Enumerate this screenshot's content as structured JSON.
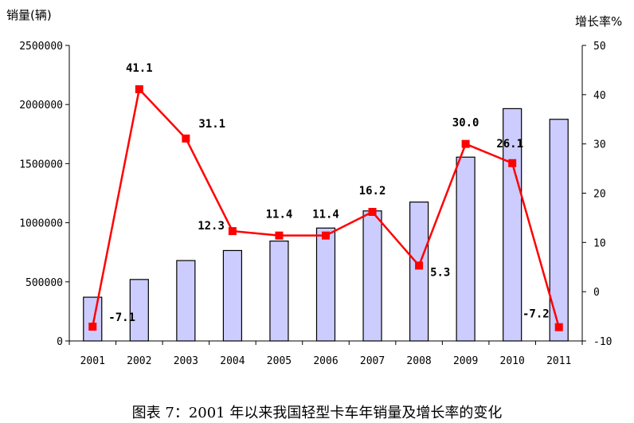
{
  "chart_data": {
    "type": "bar+line",
    "categories": [
      "2001",
      "2002",
      "2003",
      "2004",
      "2005",
      "2006",
      "2007",
      "2008",
      "2009",
      "2010",
      "2011"
    ],
    "series": [
      {
        "axis": "left",
        "type": "bar",
        "values": [
          370000,
          520000,
          680000,
          765000,
          845000,
          955000,
          1100000,
          1175000,
          1555000,
          1965000,
          1875000
        ]
      },
      {
        "axis": "right",
        "type": "line",
        "values": [
          -7.1,
          41.1,
          31.1,
          12.3,
          11.4,
          11.4,
          16.2,
          5.3,
          30.0,
          26.1,
          -7.2
        ],
        "labels": [
          "-7.1",
          "41.1",
          "31.1",
          "12.3",
          "11.4",
          "11.4",
          "16.2",
          "5.3",
          "30.0",
          "26.1",
          "-7.2"
        ]
      }
    ],
    "ylabel": "销量(辆)",
    "y2label": "增长率%",
    "ylim": [
      0,
      2500000
    ],
    "yticks": [
      "0",
      "500000",
      "1000000",
      "1500000",
      "2000000",
      "2500000"
    ],
    "y2lim": [
      -10,
      50
    ],
    "y2ticks": [
      "-10",
      "0",
      "10",
      "20",
      "30",
      "40",
      "50"
    ],
    "caption": "图表 7：2001 年以来我国轻型卡车年销量及增长率的变化",
    "colors": {
      "bar_fill": "#ccccff",
      "bar_stroke": "#000000",
      "line": "#ff0000",
      "marker": "#ff0000"
    }
  }
}
